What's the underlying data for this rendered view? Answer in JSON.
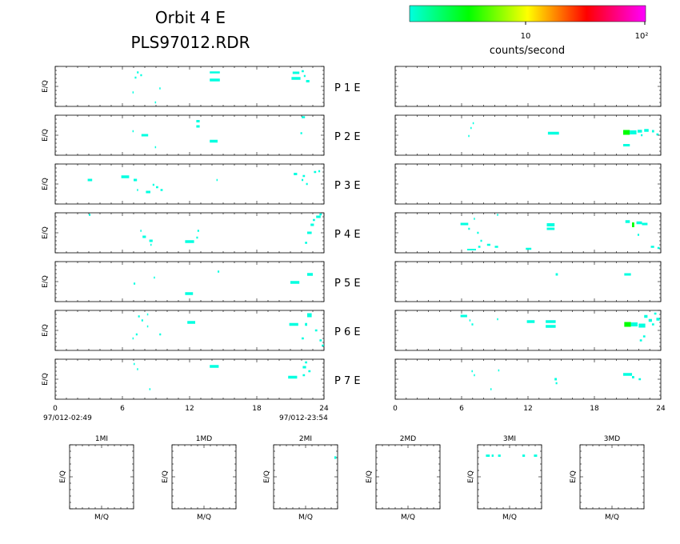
{
  "title": {
    "line1": "Orbit  4  E",
    "line2": "PLS97012.RDR"
  },
  "colorbar": {
    "label": "counts/second",
    "tick_labels": [
      "10",
      "10²"
    ],
    "stops": [
      "#00ffe0",
      "#00ff00",
      "#ffff00",
      "#ff0000",
      "#ff00ff"
    ]
  },
  "panel_ylabel": "E/Q",
  "row_labels": [
    "P   1   E",
    "P   2   E",
    "P   3   E",
    "P   4   E",
    "P   5   E",
    "P   6   E",
    "P   7   E"
  ],
  "time_axis": {
    "ticks": [
      "0",
      "6",
      "12",
      "18",
      "24"
    ],
    "start_label": "97/012-02:49",
    "end_label": "97/012-23:54"
  },
  "bottom_panels": {
    "titles": [
      "1MI",
      "1MD",
      "2MI",
      "2MD",
      "3MI",
      "3MD"
    ],
    "xlabel": "M/Q",
    "ylabel": "E/Q"
  },
  "chart_data": {
    "type": "heatmap",
    "x_unit": "hours",
    "xlim": [
      0,
      24
    ],
    "y_axis": "E/Q bin (0 = bottom, 1 = top)",
    "ylim": [
      0,
      1
    ],
    "panels": [
      {
        "row": 1,
        "side": "left",
        "cells": [
          [
            7.3,
            0.85,
            0.15,
            0.05,
            "#00ffe0"
          ],
          [
            7.6,
            0.78,
            0.15,
            0.05,
            "#00ffe0"
          ],
          [
            7.1,
            0.72,
            0.15,
            0.05,
            "#00ffe0"
          ],
          [
            6.9,
            0.35,
            0.1,
            0.05,
            "#00ffe0"
          ],
          [
            9.3,
            0.45,
            0.1,
            0.05,
            "#00ffe0"
          ],
          [
            8.9,
            0.1,
            0.1,
            0.05,
            "#00ffe0"
          ],
          [
            13.8,
            0.85,
            0.9,
            0.05,
            "#00ffe0"
          ],
          [
            13.8,
            0.66,
            0.9,
            0.07,
            "#00ffe0"
          ],
          [
            21.2,
            0.84,
            0.6,
            0.06,
            "#00ffe0"
          ],
          [
            21.1,
            0.7,
            0.8,
            0.07,
            "#00ffe0"
          ],
          [
            22,
            0.88,
            0.2,
            0.05,
            "#00ffe0"
          ],
          [
            22.2,
            0.76,
            0.15,
            0.05,
            "#00ffe0"
          ],
          [
            22.4,
            0.63,
            0.3,
            0.06,
            "#00ffe0"
          ]
        ]
      },
      {
        "row": 1,
        "side": "right",
        "cells": []
      },
      {
        "row": 2,
        "side": "left",
        "cells": [
          [
            6.9,
            0.6,
            0.1,
            0.05,
            "#00ffe0"
          ],
          [
            7.7,
            0.5,
            0.6,
            0.06,
            "#00ffe0"
          ],
          [
            8.9,
            0.2,
            0.1,
            0.05,
            "#00ffe0"
          ],
          [
            12.6,
            0.85,
            0.3,
            0.06,
            "#00ffe0"
          ],
          [
            12.6,
            0.72,
            0.3,
            0.06,
            "#00ffe0"
          ],
          [
            13.8,
            0.35,
            0.7,
            0.07,
            "#00ffe0"
          ],
          [
            22,
            0.95,
            0.3,
            0.05,
            "#00ffe0"
          ],
          [
            21.9,
            0.55,
            0.15,
            0.05,
            "#00ffe0"
          ]
        ]
      },
      {
        "row": 2,
        "side": "right",
        "cells": [
          [
            7.0,
            0.8,
            0.1,
            0.05,
            "#00ffe0"
          ],
          [
            6.8,
            0.68,
            0.1,
            0.05,
            "#00ffe0"
          ],
          [
            6.6,
            0.48,
            0.1,
            0.05,
            "#00ffe0"
          ],
          [
            13.8,
            0.55,
            1.0,
            0.07,
            "#00ffe0"
          ],
          [
            20.6,
            0.57,
            0.6,
            0.12,
            "#00ff00"
          ],
          [
            21.2,
            0.57,
            0.6,
            0.1,
            "#00ffe0"
          ],
          [
            21.9,
            0.6,
            0.4,
            0.07,
            "#00ffe0"
          ],
          [
            22.5,
            0.62,
            0.4,
            0.07,
            "#00ffe0"
          ],
          [
            22.2,
            0.5,
            0.15,
            0.05,
            "#00ffe0"
          ],
          [
            23.2,
            0.6,
            0.2,
            0.06,
            "#00ffe0"
          ],
          [
            23.6,
            0.52,
            0.2,
            0.05,
            "#00ffe0"
          ],
          [
            20.6,
            0.25,
            0.6,
            0.06,
            "#00ffe0"
          ]
        ]
      },
      {
        "row": 3,
        "side": "left",
        "cells": [
          [
            2.9,
            0.6,
            0.4,
            0.06,
            "#00ffe0"
          ],
          [
            5.9,
            0.68,
            0.7,
            0.07,
            "#00ffe0"
          ],
          [
            7.0,
            0.6,
            0.3,
            0.06,
            "#00ffe0"
          ],
          [
            7.3,
            0.35,
            0.1,
            0.05,
            "#00ffe0"
          ],
          [
            8.1,
            0.3,
            0.4,
            0.06,
            "#00ffe0"
          ],
          [
            8.7,
            0.48,
            0.15,
            0.05,
            "#00ffe0"
          ],
          [
            9.0,
            0.42,
            0.2,
            0.05,
            "#00ffe0"
          ],
          [
            9.4,
            0.35,
            0.2,
            0.05,
            "#00ffe0"
          ],
          [
            14.4,
            0.6,
            0.1,
            0.05,
            "#00ffe0"
          ],
          [
            21.3,
            0.75,
            0.3,
            0.06,
            "#00ffe0"
          ],
          [
            22.1,
            0.7,
            0.2,
            0.05,
            "#00ffe0"
          ],
          [
            22.0,
            0.6,
            0.15,
            0.05,
            "#00ffe0"
          ],
          [
            22.4,
            0.5,
            0.15,
            0.05,
            "#00ffe0"
          ],
          [
            23.1,
            0.8,
            0.2,
            0.05,
            "#00ffe0"
          ],
          [
            23.5,
            0.82,
            0.15,
            0.05,
            "#00ffe0"
          ]
        ]
      },
      {
        "row": 3,
        "side": "right",
        "cells": []
      },
      {
        "row": 4,
        "side": "left",
        "cells": [
          [
            3.0,
            0.95,
            0.15,
            0.05,
            "#00ffe0"
          ],
          [
            7.6,
            0.55,
            0.1,
            0.05,
            "#00ffe0"
          ],
          [
            7.8,
            0.4,
            0.3,
            0.06,
            "#00ffe0"
          ],
          [
            8.4,
            0.3,
            0.3,
            0.06,
            "#00ffe0"
          ],
          [
            8.5,
            0.2,
            0.1,
            0.05,
            "#00ffe0"
          ],
          [
            11.6,
            0.28,
            0.8,
            0.07,
            "#00ffe0"
          ],
          [
            12.7,
            0.55,
            0.15,
            0.05,
            "#00ffe0"
          ],
          [
            12.6,
            0.38,
            0.15,
            0.05,
            "#00ffe0"
          ],
          [
            22.5,
            0.5,
            0.4,
            0.06,
            "#00ffe0"
          ],
          [
            22.8,
            0.7,
            0.3,
            0.06,
            "#00ffe0"
          ],
          [
            23.0,
            0.82,
            0.2,
            0.05,
            "#00ffe0"
          ],
          [
            23.3,
            0.9,
            0.4,
            0.06,
            "#00ffe0"
          ],
          [
            22.3,
            0.25,
            0.2,
            0.05,
            "#00ffe0"
          ],
          [
            23.6,
            0.96,
            0.2,
            0.05,
            "#00ffe0"
          ]
        ]
      },
      {
        "row": 4,
        "side": "right",
        "cells": [
          [
            5.9,
            0.72,
            0.7,
            0.06,
            "#00ffe0"
          ],
          [
            6.6,
            0.6,
            0.15,
            0.05,
            "#00ffe0"
          ],
          [
            7.1,
            0.85,
            0.1,
            0.05,
            "#00ffe0"
          ],
          [
            7.4,
            0.5,
            0.15,
            0.05,
            "#00ffe0"
          ],
          [
            7.7,
            0.3,
            0.15,
            0.05,
            "#00ffe0"
          ],
          [
            7.5,
            0.15,
            0.2,
            0.05,
            "#00ffe0"
          ],
          [
            8.3,
            0.2,
            0.3,
            0.05,
            "#00ffe0"
          ],
          [
            9.0,
            0.15,
            0.3,
            0.05,
            "#00ffe0"
          ],
          [
            9.2,
            0.95,
            0.1,
            0.05,
            "#00ffe0"
          ],
          [
            6.5,
            0.08,
            0.8,
            0.04,
            "#00ffe0"
          ],
          [
            11.8,
            0.1,
            0.5,
            0.05,
            "#00ffe0"
          ],
          [
            13.7,
            0.7,
            0.7,
            0.08,
            "#00ffe0"
          ],
          [
            13.7,
            0.6,
            0.7,
            0.06,
            "#00ffe0"
          ],
          [
            20.8,
            0.78,
            0.4,
            0.07,
            "#00ffe0"
          ],
          [
            21.4,
            0.7,
            0.2,
            0.12,
            "#00ff00"
          ],
          [
            21.8,
            0.75,
            0.5,
            0.07,
            "#00ffe0"
          ],
          [
            22.3,
            0.72,
            0.5,
            0.06,
            "#00ffe0"
          ],
          [
            21.9,
            0.45,
            0.15,
            0.05,
            "#00ffe0"
          ],
          [
            23.1,
            0.15,
            0.3,
            0.05,
            "#00ffe0"
          ],
          [
            23.7,
            0.12,
            0.2,
            0.05,
            "#00ffe0"
          ]
        ]
      },
      {
        "row": 5,
        "side": "left",
        "cells": [
          [
            7.0,
            0.45,
            0.15,
            0.05,
            "#00ffe0"
          ],
          [
            8.8,
            0.6,
            0.1,
            0.05,
            "#00ffe0"
          ],
          [
            11.6,
            0.2,
            0.7,
            0.07,
            "#00ffe0"
          ],
          [
            14.5,
            0.75,
            0.15,
            0.05,
            "#00ffe0"
          ],
          [
            21.0,
            0.48,
            0.8,
            0.07,
            "#00ffe0"
          ],
          [
            22.5,
            0.68,
            0.5,
            0.07,
            "#00ffe0"
          ]
        ]
      },
      {
        "row": 5,
        "side": "right",
        "cells": [
          [
            14.5,
            0.68,
            0.2,
            0.06,
            "#00ffe0"
          ],
          [
            20.7,
            0.68,
            0.6,
            0.06,
            "#00ffe0"
          ]
        ]
      },
      {
        "row": 6,
        "side": "left",
        "cells": [
          [
            7.4,
            0.85,
            0.15,
            0.05,
            "#00ffe0"
          ],
          [
            7.7,
            0.75,
            0.15,
            0.05,
            "#00ffe0"
          ],
          [
            8.2,
            0.9,
            0.1,
            0.05,
            "#00ffe0"
          ],
          [
            8.2,
            0.6,
            0.1,
            0.05,
            "#00ffe0"
          ],
          [
            7.2,
            0.4,
            0.15,
            0.05,
            "#00ffe0"
          ],
          [
            6.9,
            0.3,
            0.1,
            0.05,
            "#00ffe0"
          ],
          [
            9.3,
            0.4,
            0.15,
            0.05,
            "#00ffe0"
          ],
          [
            11.8,
            0.7,
            0.7,
            0.07,
            "#00ffe0"
          ],
          [
            20.9,
            0.65,
            0.8,
            0.07,
            "#00ffe0"
          ],
          [
            22.5,
            0.88,
            0.4,
            0.1,
            "#00ffe0"
          ],
          [
            22.3,
            0.65,
            0.2,
            0.07,
            "#00ffe0"
          ],
          [
            23.2,
            0.5,
            0.2,
            0.05,
            "#00ffe0"
          ],
          [
            22.0,
            0.3,
            0.2,
            0.05,
            "#00ffe0"
          ],
          [
            23.6,
            0.25,
            0.2,
            0.05,
            "#00ffe0"
          ],
          [
            23.8,
            0.12,
            0.2,
            0.05,
            "#00ffe0"
          ]
        ]
      },
      {
        "row": 6,
        "side": "right",
        "cells": [
          [
            5.9,
            0.86,
            0.6,
            0.06,
            "#00ffe0"
          ],
          [
            6.7,
            0.75,
            0.1,
            0.05,
            "#00ffe0"
          ],
          [
            6.9,
            0.65,
            0.15,
            0.05,
            "#00ffe0"
          ],
          [
            9.2,
            0.78,
            0.1,
            0.05,
            "#00ffe0"
          ],
          [
            11.9,
            0.72,
            0.7,
            0.07,
            "#00ffe0"
          ],
          [
            13.6,
            0.72,
            0.9,
            0.07,
            "#00ffe0"
          ],
          [
            13.6,
            0.6,
            0.9,
            0.07,
            "#00ffe0"
          ],
          [
            20.7,
            0.65,
            0.6,
            0.12,
            "#00ff00"
          ],
          [
            21.3,
            0.65,
            0.6,
            0.1,
            "#00ffe0"
          ],
          [
            22.0,
            0.62,
            0.6,
            0.1,
            "#00ffe0"
          ],
          [
            22.5,
            0.85,
            0.3,
            0.07,
            "#00ffe0"
          ],
          [
            22.9,
            0.75,
            0.3,
            0.07,
            "#00ffe0"
          ],
          [
            23.6,
            0.78,
            0.3,
            0.07,
            "#00ffe0"
          ],
          [
            23.2,
            0.65,
            0.2,
            0.05,
            "#00ffe0"
          ],
          [
            22.4,
            0.35,
            0.2,
            0.05,
            "#00ffe0"
          ],
          [
            22.1,
            0.25,
            0.2,
            0.05,
            "#00ffe0"
          ],
          [
            23.4,
            0.92,
            0.2,
            0.05,
            "#00ffe0"
          ]
        ]
      },
      {
        "row": 7,
        "side": "left",
        "cells": [
          [
            7.0,
            0.88,
            0.1,
            0.05,
            "#00ffe0"
          ],
          [
            7.3,
            0.75,
            0.1,
            0.05,
            "#00ffe0"
          ],
          [
            8.4,
            0.25,
            0.1,
            0.05,
            "#00ffe0"
          ],
          [
            13.8,
            0.82,
            0.8,
            0.07,
            "#00ffe0"
          ],
          [
            20.8,
            0.55,
            0.8,
            0.07,
            "#00ffe0"
          ],
          [
            22.3,
            0.92,
            0.2,
            0.05,
            "#00ffe0"
          ],
          [
            22.1,
            0.8,
            0.3,
            0.06,
            "#00ffe0"
          ],
          [
            22.6,
            0.7,
            0.2,
            0.05,
            "#00ffe0"
          ],
          [
            22.1,
            0.6,
            0.2,
            0.05,
            "#00ffe0"
          ]
        ]
      },
      {
        "row": 7,
        "side": "right",
        "cells": [
          [
            6.9,
            0.7,
            0.1,
            0.05,
            "#00ffe0"
          ],
          [
            7.1,
            0.6,
            0.1,
            0.05,
            "#00ffe0"
          ],
          [
            9.3,
            0.72,
            0.1,
            0.05,
            "#00ffe0"
          ],
          [
            8.6,
            0.25,
            0.1,
            0.05,
            "#00ffe0"
          ],
          [
            14.4,
            0.5,
            0.2,
            0.06,
            "#00ffe0"
          ],
          [
            14.5,
            0.4,
            0.15,
            0.05,
            "#00ffe0"
          ],
          [
            20.6,
            0.62,
            0.8,
            0.07,
            "#00ffe0"
          ],
          [
            21.4,
            0.55,
            0.2,
            0.06,
            "#00ffe0"
          ],
          [
            22.0,
            0.5,
            0.2,
            0.05,
            "#00ffe0"
          ]
        ]
      }
    ],
    "mq_panels": [
      {
        "name": "1MI",
        "cells": []
      },
      {
        "name": "1MD",
        "cells": []
      },
      {
        "name": "2MI",
        "cells": [
          [
            0.95,
            0.8,
            0.03,
            0.04,
            "#00ffe0"
          ]
        ]
      },
      {
        "name": "2MD",
        "cells": []
      },
      {
        "name": "3MI",
        "cells": [
          [
            0.13,
            0.83,
            0.06,
            0.035,
            "#00ffe0"
          ],
          [
            0.22,
            0.83,
            0.03,
            0.035,
            "#00ffe0"
          ],
          [
            0.32,
            0.83,
            0.04,
            0.035,
            "#00ffe0"
          ],
          [
            0.7,
            0.83,
            0.04,
            0.035,
            "#00ffe0"
          ],
          [
            0.88,
            0.83,
            0.05,
            0.035,
            "#00ffe0"
          ]
        ]
      },
      {
        "name": "3MD",
        "cells": []
      }
    ]
  }
}
